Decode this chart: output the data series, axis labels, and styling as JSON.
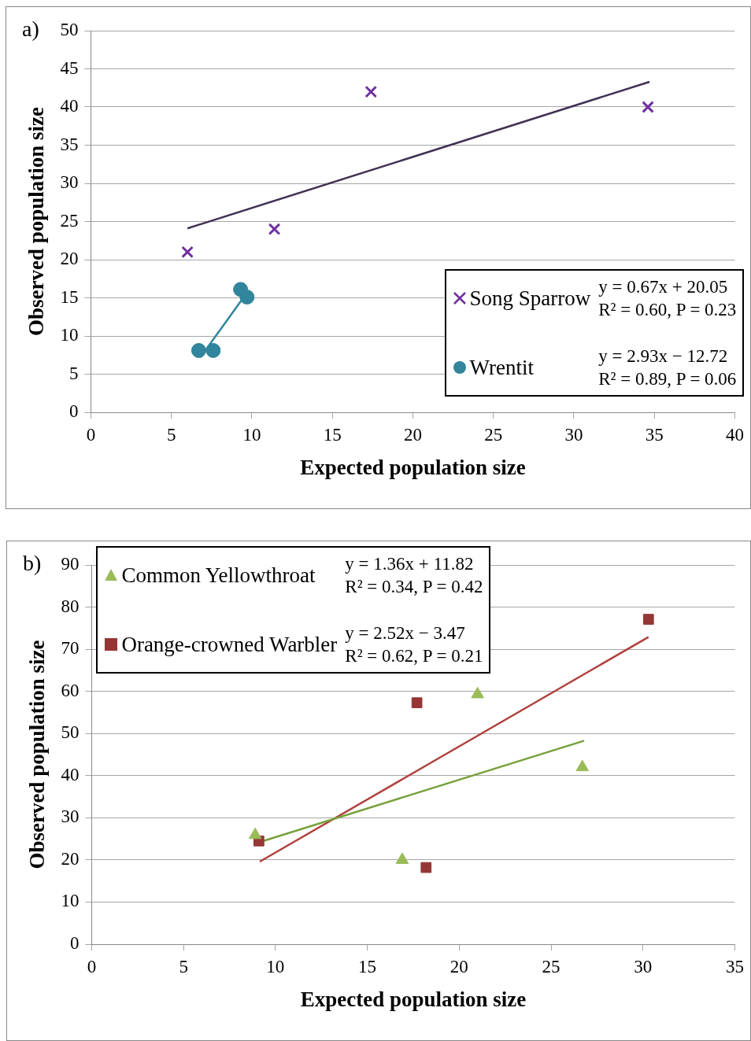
{
  "chart_data": [
    {
      "type": "scatter",
      "title": "a)",
      "xlabel": "Expected population size",
      "ylabel": "Observed population size",
      "xlim": [
        0,
        40
      ],
      "xticks": [
        0,
        5,
        10,
        15,
        20,
        25,
        30,
        35,
        40
      ],
      "ylim": [
        0,
        50
      ],
      "yticks": [
        0,
        5,
        10,
        15,
        20,
        25,
        30,
        35,
        40,
        45,
        50
      ],
      "grid": "y",
      "legend": "bottom right",
      "annotations": [
        "y = 0.67x + 20.05",
        "R² = 0.60, P = 0.23",
        "y = 2.93x − 12.72",
        "R² = 0.89, P = 0.06"
      ],
      "series": [
        {
          "name": "Song Sparrow",
          "color": "#7030a0",
          "marker": "cross",
          "x": [
            6.0,
            11.4,
            17.4,
            34.6
          ],
          "values": [
            21,
            24,
            42,
            40
          ]
        },
        {
          "name": "Wrentit",
          "color": "#31859c",
          "marker": "circle",
          "x": [
            6.7,
            7.6,
            9.3,
            9.7
          ],
          "values": [
            8.1,
            8.1,
            16.1,
            15.1
          ]
        },
        {
          "type": "line",
          "color": "#403152",
          "marker": "none",
          "x": [
            6.0,
            34.7
          ],
          "values": [
            24.1,
            43.3
          ]
        },
        {
          "type": "line",
          "color": "#31859c",
          "marker": "none",
          "x": [
            6.8,
            9.5
          ],
          "values": [
            7.2,
            15.1
          ]
        }
      ]
    },
    {
      "type": "scatter",
      "title": "b)",
      "xlabel": "Expected population size",
      "ylabel": "Observed population size",
      "xlim": [
        0,
        35
      ],
      "xticks": [
        0,
        5,
        10,
        15,
        20,
        25,
        30,
        35
      ],
      "ylim": [
        0,
        90
      ],
      "yticks": [
        0,
        10,
        20,
        30,
        40,
        50,
        60,
        70,
        80,
        90
      ],
      "grid": "y",
      "legend": "top left",
      "annotations": [
        "y = 1.36x + 11.82",
        "R² = 0.34, P = 0.42",
        "y = 2.52x − 3.47",
        "R² = 0.62, P = 0.21"
      ],
      "series": [
        {
          "name": "Common Yellowthroat",
          "color": "#9bbb59",
          "marker": "triangle",
          "x": [
            8.9,
            16.9,
            21.0,
            26.7
          ],
          "values": [
            25.9,
            20,
            59.3,
            42
          ]
        },
        {
          "name": "Orange-crowned Warbler",
          "color": "#953735",
          "marker": "square",
          "x": [
            9.1,
            17.7,
            18.2,
            30.3
          ],
          "values": [
            24.5,
            57.3,
            18.2,
            77.1
          ]
        },
        {
          "type": "line",
          "color": "#77a03a",
          "marker": "none",
          "x": [
            8.9,
            26.8
          ],
          "values": [
            23.9,
            48.3
          ]
        },
        {
          "type": "line",
          "color": "#b0403c",
          "marker": "none",
          "x": [
            9.15,
            30.3
          ],
          "values": [
            19.6,
            72.9
          ]
        }
      ]
    }
  ]
}
